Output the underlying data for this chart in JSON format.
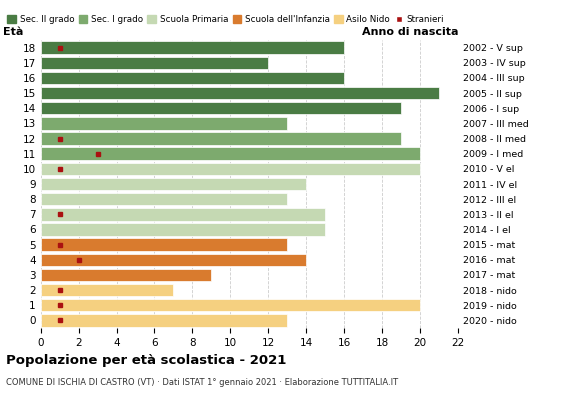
{
  "ages": [
    18,
    17,
    16,
    15,
    14,
    13,
    12,
    11,
    10,
    9,
    8,
    7,
    6,
    5,
    4,
    3,
    2,
    1,
    0
  ],
  "years": [
    "2002 - V sup",
    "2003 - IV sup",
    "2004 - III sup",
    "2005 - II sup",
    "2006 - I sup",
    "2007 - III med",
    "2008 - II med",
    "2009 - I med",
    "2010 - V el",
    "2011 - IV el",
    "2012 - III el",
    "2013 - II el",
    "2014 - I el",
    "2015 - mat",
    "2016 - mat",
    "2017 - mat",
    "2018 - nido",
    "2019 - nido",
    "2020 - nido"
  ],
  "values": [
    16,
    12,
    16,
    21,
    19,
    13,
    19,
    20,
    20,
    14,
    13,
    15,
    15,
    13,
    14,
    9,
    7,
    20,
    13
  ],
  "stranieri": [
    1,
    0,
    0,
    0,
    0,
    0,
    1,
    3,
    1,
    0,
    0,
    1,
    0,
    1,
    2,
    0,
    1,
    1,
    1
  ],
  "bar_colors": [
    "#4a7c44",
    "#4a7c44",
    "#4a7c44",
    "#4a7c44",
    "#4a7c44",
    "#7daa6e",
    "#7daa6e",
    "#7daa6e",
    "#c5d9b3",
    "#c5d9b3",
    "#c5d9b3",
    "#c5d9b3",
    "#c5d9b3",
    "#d97b2e",
    "#d97b2e",
    "#d97b2e",
    "#f5d080",
    "#f5d080",
    "#f5d080"
  ],
  "stranieri_color": "#aa1111",
  "title": "Popolazione per età scolastica - 2021",
  "subtitle": "COMUNE DI ISCHIA DI CASTRO (VT) · Dati ISTAT 1° gennaio 2021 · Elaborazione TUTTITALIA.IT",
  "xlim": [
    0,
    22
  ],
  "xticks": [
    0,
    2,
    4,
    6,
    8,
    10,
    12,
    14,
    16,
    18,
    20,
    22
  ],
  "background_color": "#ffffff",
  "grid_color": "#cccccc",
  "legend_labels": [
    "Sec. II grado",
    "Sec. I grado",
    "Scuola Primaria",
    "Scuola dell'Infanzia",
    "Asilo Nido",
    "Stranieri"
  ],
  "legend_colors": [
    "#4a7c44",
    "#7daa6e",
    "#c5d9b3",
    "#d97b2e",
    "#f5d080",
    "#aa1111"
  ]
}
